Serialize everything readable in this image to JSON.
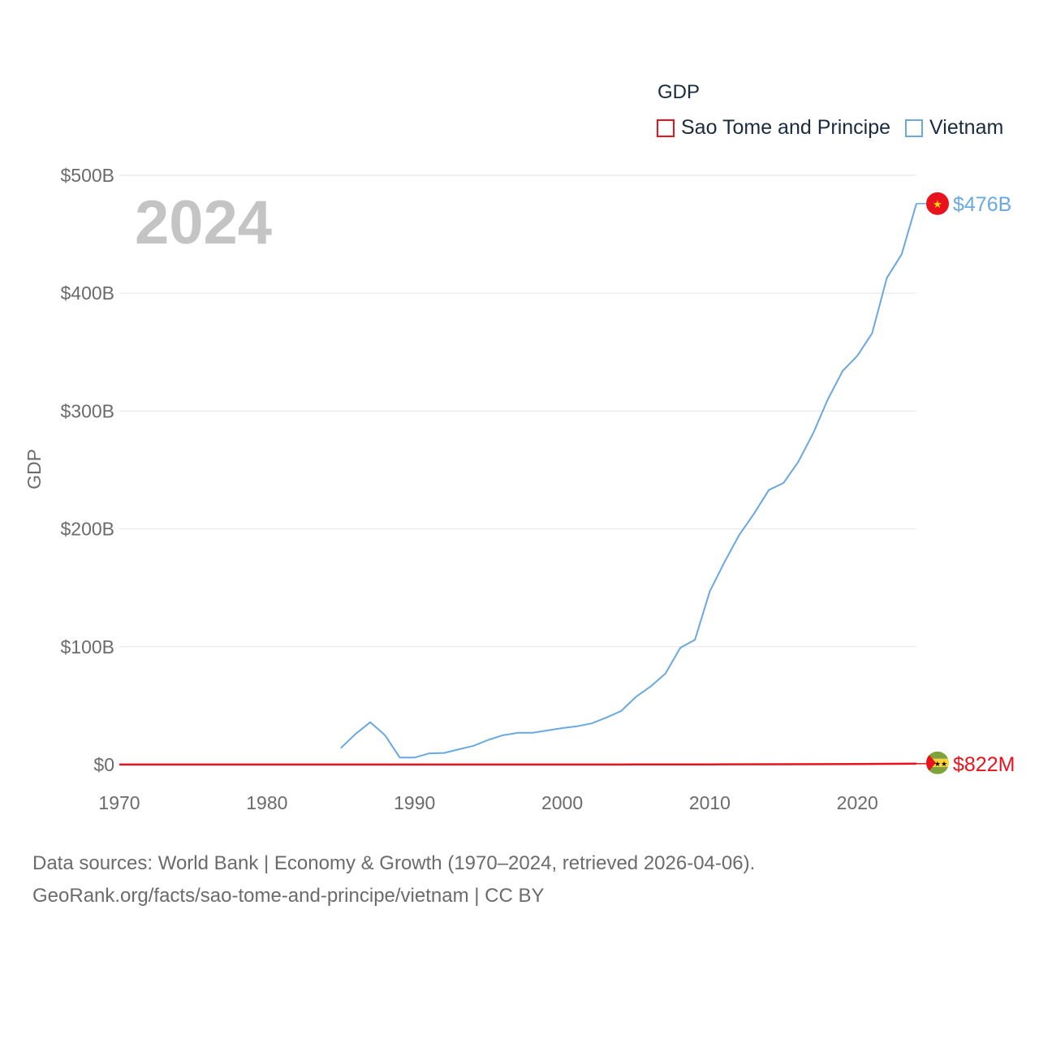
{
  "chart_data": {
    "type": "line",
    "year_label": "2024",
    "ylabel": "GDP",
    "x_ticks": [
      1970,
      1980,
      1990,
      2000,
      2010,
      2020
    ],
    "xlim": [
      1970,
      2024
    ],
    "ylim": [
      0,
      500
    ],
    "y_ticks": [
      {
        "value": 0,
        "label": "$0"
      },
      {
        "value": 100,
        "label": "$100B"
      },
      {
        "value": 200,
        "label": "$200B"
      },
      {
        "value": 300,
        "label": "$300B"
      },
      {
        "value": 400,
        "label": "$400B"
      },
      {
        "value": 500,
        "label": "$500B"
      }
    ],
    "legend_title": "GDP",
    "series": [
      {
        "name": "Sao Tome and Principe",
        "color": "#e8131d",
        "end_label": "$822M",
        "flag": "sao-tome-flag-icon",
        "x": [
          1970,
          1975,
          1980,
          1985,
          1990,
          1995,
          2000,
          2005,
          2010,
          2015,
          2020,
          2024
        ],
        "values": [
          0.05,
          0.06,
          0.08,
          0.09,
          0.1,
          0.1,
          0.1,
          0.13,
          0.2,
          0.32,
          0.47,
          0.822
        ]
      },
      {
        "name": "Vietnam",
        "color": "#6aa8e0",
        "end_label": "$476B",
        "flag": "vietnam-flag-icon",
        "x": [
          1985,
          1986,
          1987,
          1988,
          1989,
          1990,
          1991,
          1992,
          1993,
          1994,
          1995,
          1996,
          1997,
          1998,
          1999,
          2000,
          2001,
          2002,
          2003,
          2004,
          2005,
          2006,
          2007,
          2008,
          2009,
          2010,
          2011,
          2012,
          2013,
          2014,
          2015,
          2016,
          2017,
          2018,
          2019,
          2020,
          2021,
          2022,
          2023,
          2024
        ],
        "values": [
          14,
          26,
          36,
          25,
          6,
          6,
          9.6,
          9.9,
          13,
          16,
          21,
          25,
          27,
          27,
          29,
          31,
          32.5,
          35,
          40,
          45.5,
          57.6,
          66.4,
          77.4,
          99.1,
          106,
          147,
          172,
          195,
          213,
          233,
          239,
          257,
          281,
          310,
          334,
          347,
          366,
          413,
          433,
          476
        ]
      }
    ]
  },
  "footer": {
    "line1": "Data sources: World Bank | Economy & Growth (1970–2024, retrieved 2026-04-06).",
    "line2": "GeoRank.org/facts/sao-tome-and-principe/vietnam | CC BY"
  }
}
